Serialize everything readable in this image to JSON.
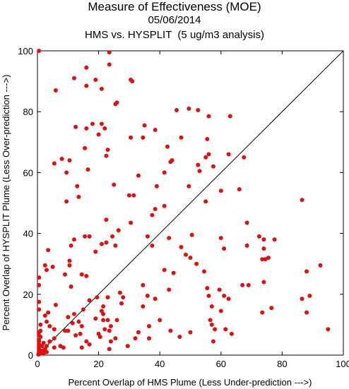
{
  "chart_data": {
    "type": "scatter",
    "title": "Measure of Effectiveness (MOE)",
    "subtitle": "05/06/2014",
    "subtitle2": "HMS vs. HYSPLIT  (5 ug/m3 analysis)",
    "xlabel": "Percent Overlap of HMS Plume (Less Under-prediction --->)",
    "ylabel": "Percent Overlap of HYSPLIT Plume (Less Over-prediction --->)",
    "xlim": [
      0,
      100
    ],
    "ylim": [
      0,
      100
    ],
    "xticks": [
      0,
      20,
      40,
      60,
      80,
      100
    ],
    "yticks": [
      0,
      20,
      40,
      60,
      80,
      100
    ],
    "xtick_labels": [
      "0",
      "20",
      "40",
      "60",
      "80",
      "100"
    ],
    "ytick_labels": [
      "0",
      "20",
      "40",
      "60",
      "80",
      "100"
    ],
    "grid": false,
    "reference_line": {
      "from": [
        0,
        0
      ],
      "to": [
        100,
        100
      ]
    },
    "point_color": "#e01010",
    "points": [
      [
        0.5,
        100
      ],
      [
        23.5,
        99.5
      ],
      [
        23.5,
        95.5
      ],
      [
        16,
        94.5
      ],
      [
        12,
        91
      ],
      [
        19,
        90.5
      ],
      [
        30.5,
        90.5
      ],
      [
        31,
        90
      ],
      [
        16,
        88.5
      ],
      [
        21,
        87.5
      ],
      [
        6,
        87
      ],
      [
        26,
        83
      ],
      [
        25.5,
        82.5
      ],
      [
        49.5,
        81
      ],
      [
        45.5,
        80.5
      ],
      [
        52.5,
        80.5
      ],
      [
        56,
        78.5
      ],
      [
        63,
        78.5
      ],
      [
        18,
        76
      ],
      [
        21,
        76
      ],
      [
        12.5,
        75
      ],
      [
        16,
        74.5
      ],
      [
        22,
        74.5
      ],
      [
        35,
        75.5
      ],
      [
        38.5,
        74
      ],
      [
        20,
        72.5
      ],
      [
        30.5,
        71.5
      ],
      [
        34.5,
        71.5
      ],
      [
        47,
        71.5
      ],
      [
        55.5,
        71
      ],
      [
        56,
        66
      ],
      [
        62.5,
        66
      ],
      [
        15.5,
        68
      ],
      [
        23,
        67.5
      ],
      [
        42.5,
        68.5
      ],
      [
        22.5,
        65.5
      ],
      [
        67.5,
        65
      ],
      [
        55,
        65
      ],
      [
        8,
        64.5
      ],
      [
        10.5,
        64
      ],
      [
        5.5,
        63
      ],
      [
        43.5,
        63.5
      ],
      [
        44,
        64
      ],
      [
        52.5,
        62.5
      ],
      [
        57.5,
        62
      ],
      [
        9.5,
        60
      ],
      [
        16.5,
        61
      ],
      [
        41.5,
        60
      ],
      [
        53,
        60.5
      ],
      [
        33,
        59
      ],
      [
        25,
        56
      ],
      [
        13,
        55.5
      ],
      [
        39,
        55.5
      ],
      [
        49.5,
        55.5
      ],
      [
        60,
        54
      ],
      [
        66,
        54.5
      ],
      [
        30,
        52.5
      ],
      [
        13.5,
        52
      ],
      [
        9.5,
        50.5
      ],
      [
        31.5,
        52.5
      ],
      [
        55,
        50.5
      ],
      [
        41.5,
        49
      ],
      [
        38.5,
        48
      ],
      [
        86.5,
        51
      ],
      [
        37.5,
        46
      ],
      [
        22.5,
        44.5
      ],
      [
        30.5,
        43.5
      ],
      [
        68.5,
        43.5
      ],
      [
        24.5,
        39
      ],
      [
        36,
        39
      ],
      [
        15.5,
        39
      ],
      [
        17,
        39
      ],
      [
        12,
        38
      ],
      [
        43,
        38.5
      ],
      [
        50.5,
        39.5
      ],
      [
        72.5,
        39
      ],
      [
        74,
        38
      ],
      [
        77.5,
        38
      ],
      [
        26.5,
        41
      ],
      [
        21,
        36.5
      ],
      [
        22.5,
        37
      ],
      [
        60,
        38.5
      ],
      [
        61,
        35
      ],
      [
        68.5,
        36
      ],
      [
        47,
        35.5
      ],
      [
        3.5,
        34.5
      ],
      [
        11,
        36
      ],
      [
        19,
        34
      ],
      [
        37.5,
        36
      ],
      [
        25.5,
        36
      ],
      [
        2.5,
        29.5
      ],
      [
        5,
        29
      ],
      [
        10.5,
        31
      ],
      [
        10.5,
        29.5
      ],
      [
        48.5,
        33
      ],
      [
        74,
        35
      ],
      [
        73.5,
        31.5
      ],
      [
        74.5,
        31.5
      ],
      [
        75.5,
        32
      ],
      [
        50,
        32
      ],
      [
        52,
        30
      ],
      [
        3,
        28
      ],
      [
        14.5,
        26.5
      ],
      [
        16,
        26
      ],
      [
        9,
        26.5
      ],
      [
        41.5,
        28
      ],
      [
        44.5,
        27
      ],
      [
        54.5,
        27.5
      ],
      [
        74,
        24
      ],
      [
        88,
        27.5
      ],
      [
        92.5,
        29.5
      ],
      [
        0.5,
        25.5
      ],
      [
        0.5,
        23
      ],
      [
        11,
        22.5
      ],
      [
        34.5,
        23
      ],
      [
        43,
        21.5
      ],
      [
        55.5,
        22
      ],
      [
        59.5,
        21.5
      ],
      [
        67,
        23
      ],
      [
        69,
        23
      ],
      [
        56,
        19.5
      ],
      [
        19.5,
        19
      ],
      [
        23,
        19
      ],
      [
        27,
        20.5
      ],
      [
        28,
        19
      ],
      [
        36,
        19.5
      ],
      [
        38.5,
        18.5
      ],
      [
        61,
        19.5
      ],
      [
        62.5,
        18.5
      ],
      [
        86.5,
        18.5
      ],
      [
        89,
        19.5
      ],
      [
        0.5,
        17.5
      ],
      [
        17,
        18
      ],
      [
        27.5,
        17
      ],
      [
        6,
        16.5
      ],
      [
        21.5,
        16
      ],
      [
        34.5,
        16
      ],
      [
        57,
        16
      ],
      [
        76.5,
        15.5
      ],
      [
        0.5,
        15
      ],
      [
        3.5,
        14
      ],
      [
        15,
        15
      ],
      [
        21,
        14.5
      ],
      [
        21.5,
        13.5
      ],
      [
        60,
        14.5
      ],
      [
        73.5,
        14
      ],
      [
        88,
        14
      ],
      [
        2.5,
        13
      ],
      [
        10,
        12.5
      ],
      [
        12,
        13.5
      ],
      [
        21.5,
        11.5
      ],
      [
        3,
        11
      ],
      [
        13.5,
        11
      ],
      [
        19,
        12
      ],
      [
        23,
        11.5
      ],
      [
        26,
        11.5
      ],
      [
        40,
        11.5
      ],
      [
        56.5,
        11.5
      ],
      [
        1,
        10
      ],
      [
        11.5,
        10.5
      ],
      [
        14.5,
        9.5
      ],
      [
        24,
        9.5
      ],
      [
        36.5,
        9.5
      ],
      [
        57,
        10
      ],
      [
        4,
        9.5
      ],
      [
        5.5,
        8.5
      ],
      [
        9,
        8
      ],
      [
        10,
        8
      ],
      [
        1,
        8
      ],
      [
        0.5,
        7.5
      ],
      [
        14,
        7
      ],
      [
        20,
        7
      ],
      [
        22,
        8.5
      ],
      [
        23.5,
        8
      ],
      [
        33,
        7.5
      ],
      [
        43.5,
        8
      ],
      [
        50,
        7.5
      ],
      [
        58,
        8.5
      ],
      [
        61.5,
        8.5
      ],
      [
        63.5,
        7
      ],
      [
        95,
        8.5
      ],
      [
        0.5,
        6.5
      ],
      [
        1,
        6
      ],
      [
        5.5,
        5.5
      ],
      [
        12.5,
        6.5
      ],
      [
        20.5,
        6
      ],
      [
        25.5,
        5.5
      ],
      [
        32,
        5.5
      ],
      [
        36.5,
        5.5
      ],
      [
        46.5,
        6
      ],
      [
        0.5,
        5
      ],
      [
        0.5,
        4.5
      ],
      [
        2,
        4
      ],
      [
        4,
        4.5
      ],
      [
        16,
        4.5
      ],
      [
        17,
        3.5
      ],
      [
        24,
        4.5
      ],
      [
        57.5,
        4.5
      ],
      [
        0.5,
        3.5
      ],
      [
        0.5,
        3
      ],
      [
        1.5,
        3
      ],
      [
        3,
        3
      ],
      [
        7.5,
        3
      ],
      [
        8.5,
        2.5
      ],
      [
        14.5,
        2.5
      ],
      [
        5.5,
        2.5
      ],
      [
        0.5,
        2
      ],
      [
        1,
        1.5
      ],
      [
        2,
        1.5
      ],
      [
        2.5,
        2
      ],
      [
        23.5,
        2
      ],
      [
        29.5,
        3
      ],
      [
        0.5,
        1
      ],
      [
        1,
        0.5
      ],
      [
        1.5,
        1
      ],
      [
        2,
        0.5
      ],
      [
        3,
        1
      ],
      [
        0.5,
        0.5
      ],
      [
        0.3,
        0.2
      ]
    ]
  }
}
